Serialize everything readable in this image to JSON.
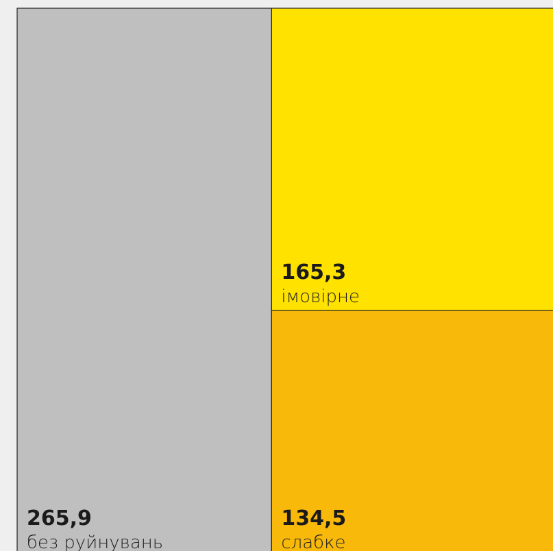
{
  "chart_data": {
    "type": "treemap",
    "categories": [
      "без руйнувань",
      "імовірне",
      "слабке"
    ],
    "values": [
      265.9,
      165.3,
      134.5
    ],
    "value_labels": [
      "265,9",
      "165,3",
      "134,5"
    ],
    "colors": [
      "#bfbfbf",
      "#ffe200",
      "#f9b90b"
    ]
  }
}
